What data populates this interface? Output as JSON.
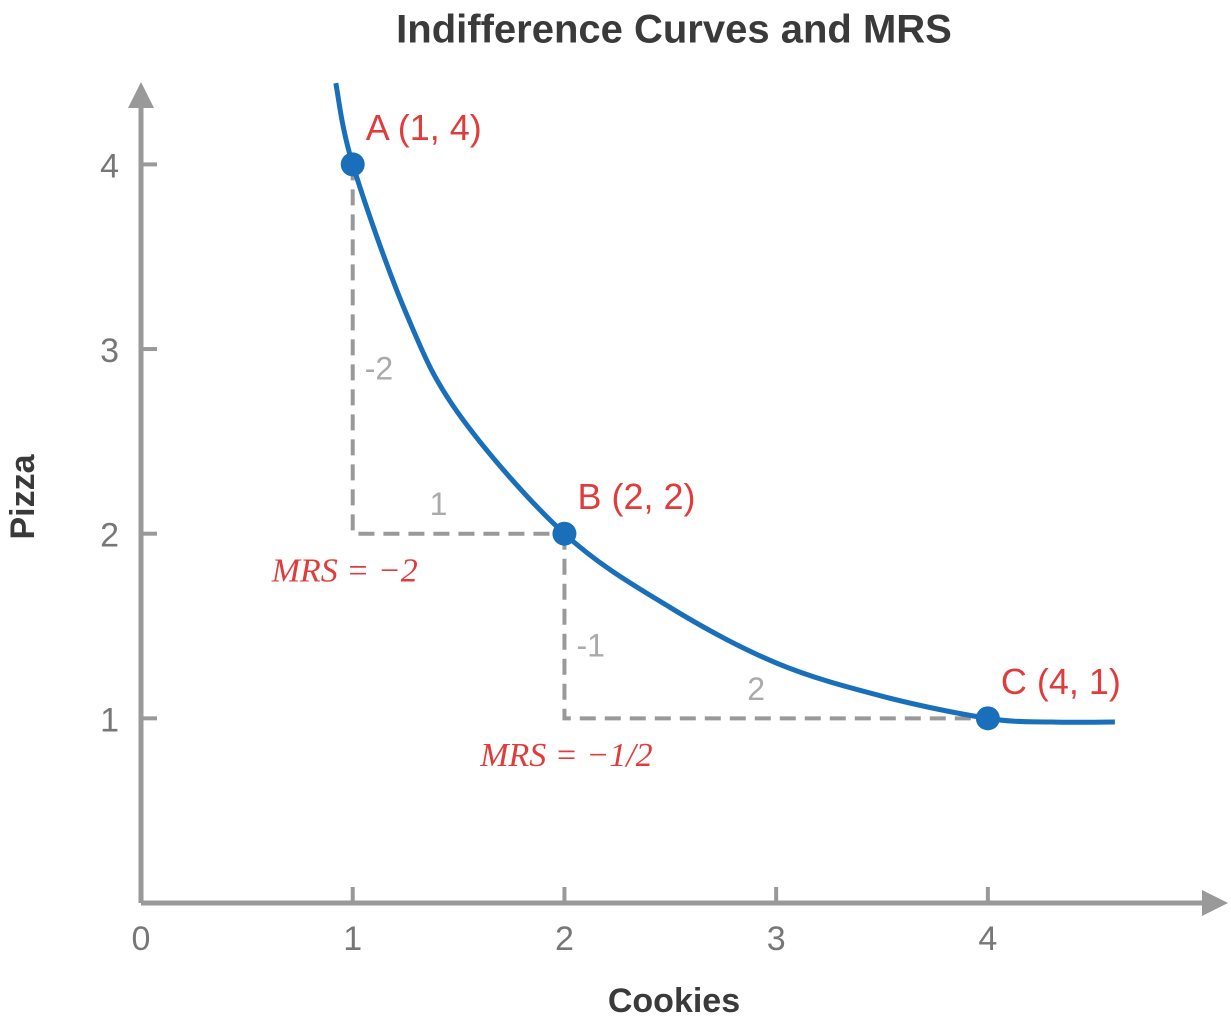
{
  "chart_data": {
    "type": "line",
    "title": "Indifference Curves and MRS",
    "xlabel": "Cookies",
    "ylabel": "Pizza",
    "xlim": [
      0,
      5.12
    ],
    "ylim": [
      0,
      4.43
    ],
    "xticks": [
      0,
      1,
      2,
      3,
      4
    ],
    "yticks": [
      1,
      2,
      3,
      4
    ],
    "series": [
      {
        "color": "#1a6fba",
        "x": [
          0.92,
          1,
          1.25,
          1.5,
          2,
          2.5,
          3,
          3.5,
          4,
          4.3,
          4.6
        ],
        "values": [
          4.44,
          4,
          3.2,
          2.65,
          2,
          1.6,
          1.3,
          1.12,
          1,
          0.98,
          0.98
        ]
      }
    ],
    "points": [
      {
        "label": "A (1, 4)",
        "x": 1,
        "y": 4
      },
      {
        "label": "B (2, 2)",
        "x": 2,
        "y": 2
      },
      {
        "label": "C (4, 1)",
        "x": 4,
        "y": 1
      }
    ],
    "point_color": "#1a6fba",
    "label_color": "#e03c3c",
    "steps": [
      {
        "x": [
          1,
          1,
          2
        ],
        "y": [
          4,
          2,
          2
        ],
        "rise_label": "-2",
        "run_label": "1",
        "mrs_label": "MRS = −2"
      },
      {
        "x": [
          2,
          2,
          4
        ],
        "y": [
          2,
          1,
          1
        ],
        "rise_label": "-1",
        "run_label": "2",
        "mrs_label": "MRS = −1/2"
      }
    ]
  }
}
